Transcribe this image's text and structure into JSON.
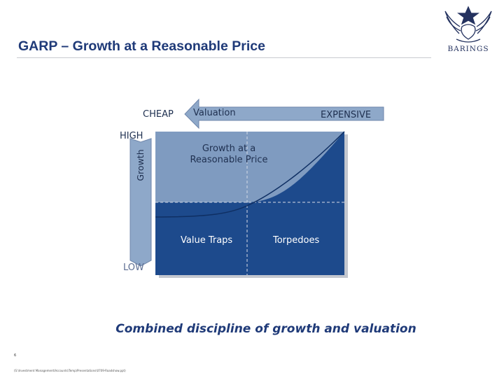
{
  "header": {
    "title": "GARP – Growth at a Reasonable Price",
    "logo_text": "BARINGS"
  },
  "diagram": {
    "top_left_label": "CHEAP",
    "arrow_label": "Valuation",
    "top_right_label": "EXPENSIVE",
    "high_label": "HIGH",
    "low_label": "LOW",
    "vertical_axis_label": "Growth",
    "garp_region_label": [
      "Growth at a",
      "Reasonable Price"
    ],
    "bottom_left_label": "Value Traps",
    "bottom_right_label": "Torpedoes"
  },
  "colors": {
    "title": "#1f3a78",
    "light_blue": "#7f9bc0",
    "dark_blue": "#1d4a8c"
  },
  "tagline": "Combined discipline of growth and valuation",
  "footer": {
    "page_number": "6",
    "path": "(S:\\Investment Management\\Accounts\\Temp\\Presentations\\0709-Roadshow.ppt)"
  }
}
